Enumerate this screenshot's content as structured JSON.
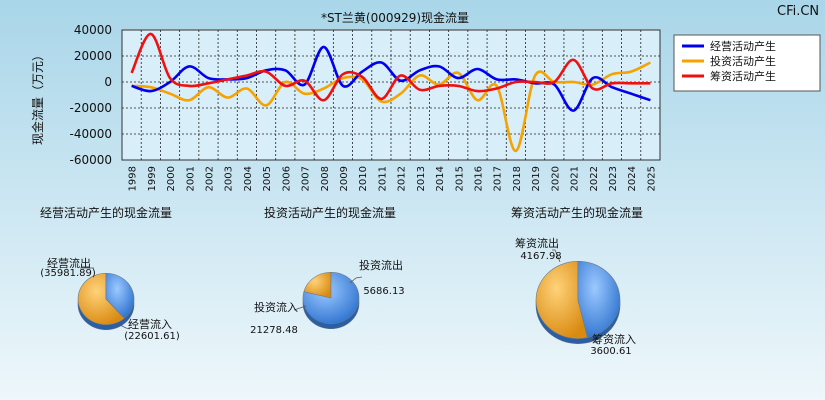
{
  "watermark": "CFi.CN",
  "chart_data": [
    {
      "type": "line",
      "title": "*ST兰黄(000929)现金流量",
      "ylabel": "现金流量（万元）",
      "ylim": [
        -60000,
        40000
      ],
      "yticks": [
        40000,
        20000,
        0,
        -20000,
        -40000,
        -60000
      ],
      "grid": true,
      "legend_position": "top-right",
      "x": [
        "1998",
        "1999",
        "2000",
        "2001",
        "2002",
        "2003",
        "2004",
        "2005",
        "2006",
        "2007",
        "2008",
        "2009",
        "2010",
        "2011",
        "2012",
        "2013",
        "2014",
        "2015",
        "2016",
        "2017",
        "2018",
        "2019",
        "2020",
        "2021",
        "2022",
        "2023",
        "2024",
        "2025"
      ],
      "series": [
        {
          "name": "经营活动产生",
          "color": "#0000ee",
          "values": [
            -3000,
            -7000,
            0,
            12000,
            3000,
            2000,
            3000,
            9000,
            9000,
            -2000,
            27000,
            -3000,
            8000,
            15000,
            1000,
            9000,
            12000,
            3000,
            10000,
            2000,
            2000,
            -1000,
            -2000,
            -22000,
            3000,
            -4000,
            -9000,
            -14000
          ]
        },
        {
          "name": "投资活动产生",
          "color": "#f5a300",
          "values": [
            -3000,
            -4000,
            -9000,
            -14000,
            -4000,
            -12000,
            -5000,
            -18000,
            0,
            -9000,
            -5000,
            3000,
            2000,
            -15000,
            -9000,
            5000,
            -2000,
            7000,
            -14000,
            -3000,
            -53000,
            5000,
            0,
            0,
            -2000,
            6000,
            8000,
            15000
          ]
        },
        {
          "name": "筹资活动产生",
          "color": "#ee1111",
          "values": [
            7000,
            37000,
            3000,
            -3000,
            -1000,
            2000,
            5000,
            8000,
            -3000,
            1000,
            -14000,
            6000,
            4000,
            -13000,
            5000,
            -6000,
            -3000,
            -3000,
            -7000,
            -5000,
            0,
            0,
            0,
            17000,
            -5000,
            -1000,
            -1000,
            -1000
          ]
        }
      ]
    },
    {
      "type": "pie",
      "title": "经营活动产生的现金流量",
      "slices": [
        {
          "label": "经营流出",
          "value": -35981.89,
          "value_text": "(35981.89)",
          "color": "#f0a020"
        },
        {
          "label": "经营流入",
          "value": -22601.61,
          "value_text": "(22601.61)",
          "color": "#4a8fe0"
        }
      ]
    },
    {
      "type": "pie",
      "title": "投资活动产生的现金流量",
      "slices": [
        {
          "label": "投资流出",
          "value": 5686.13,
          "value_text": "5686.13",
          "color": "#f0a020"
        },
        {
          "label": "投资流入",
          "value": 21278.48,
          "value_text": "21278.48",
          "color": "#4a8fe0"
        }
      ]
    },
    {
      "type": "pie",
      "title": "筹资活动产生的现金流量",
      "slices": [
        {
          "label": "筹资流出",
          "value": 4167.98,
          "value_text": "4167.98",
          "color": "#f0a020"
        },
        {
          "label": "筹资流入",
          "value": 3600.61,
          "value_text": "3600.61",
          "color": "#4a8fe0"
        }
      ]
    }
  ]
}
